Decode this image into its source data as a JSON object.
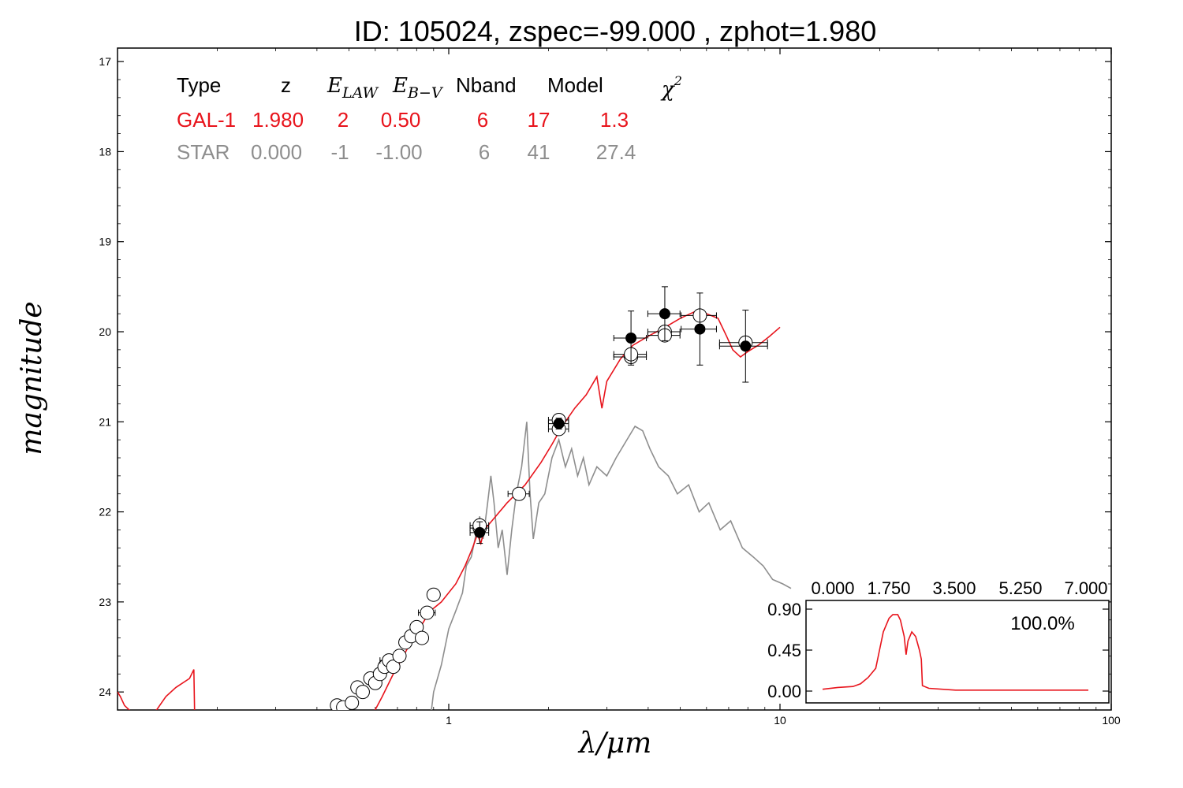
{
  "title": "ID:  105024, zspec=-99.000 , zphot=1.980",
  "colors": {
    "galaxy": "#e8141c",
    "star": "#8e8e8e",
    "axes": "#000000",
    "open_point_fill": "#ffffff",
    "filled_point": "#000000"
  },
  "fit_table": {
    "headers": {
      "type": "Type",
      "z": "z",
      "e_law": "E_LAW",
      "e_bv": "E_B−V",
      "nband": "Nband",
      "model": "Model",
      "chi2": "χ²"
    },
    "rows": [
      {
        "name": "galaxy",
        "type": "GAL-1",
        "z": "1.980",
        "e_law": "2",
        "e_bv": "0.50",
        "nband": "6",
        "model": "17",
        "chi2": "1.3",
        "color": "#e8141c"
      },
      {
        "name": "star",
        "type": "STAR",
        "z": "0.000",
        "e_law": "-1",
        "e_bv": "-1.00",
        "nband": "6",
        "model": "41",
        "chi2": "27.4",
        "color": "#8e8e8e"
      }
    ]
  },
  "chart_data": [
    {
      "type": "line",
      "xlabel": "λ/μm",
      "ylabel": "magnitude",
      "x_scale": "log",
      "xlim": [
        0.1,
        100
      ],
      "ylim": [
        24.2,
        16.85
      ],
      "y_inverted": true,
      "x_ticks": [
        "1",
        "10",
        "100"
      ],
      "x_tick_values": [
        1,
        10,
        100
      ],
      "y_ticks": [
        "17",
        "18",
        "19",
        "20",
        "21",
        "22",
        "23",
        "24"
      ],
      "y_tick_values": [
        17,
        18,
        19,
        20,
        21,
        22,
        23,
        24
      ],
      "series": [
        {
          "id": "galaxy_model",
          "color": "#e8141c",
          "points": [
            [
              0.1,
              24.0
            ],
            [
              0.102,
              24.05
            ],
            [
              0.105,
              24.15
            ],
            [
              0.11,
              24.22
            ],
            [
              0.13,
              24.22
            ],
            [
              0.14,
              24.05
            ],
            [
              0.15,
              23.95
            ],
            [
              0.165,
              23.85
            ],
            [
              0.17,
              23.75
            ],
            [
              0.171,
              24.3
            ],
            [
              0.58,
              24.3
            ],
            [
              0.63,
              24.05
            ],
            [
              0.68,
              23.8
            ],
            [
              0.73,
              23.6
            ],
            [
              0.78,
              23.4
            ],
            [
              0.83,
              23.25
            ],
            [
              0.88,
              23.1
            ],
            [
              0.95,
              23.0
            ],
            [
              1.05,
              22.8
            ],
            [
              1.12,
              22.6
            ],
            [
              1.18,
              22.4
            ],
            [
              1.22,
              22.25
            ],
            [
              1.25,
              22.35
            ],
            [
              1.28,
              22.2
            ],
            [
              1.35,
              22.1
            ],
            [
              1.5,
              21.9
            ],
            [
              1.7,
              21.7
            ],
            [
              1.9,
              21.45
            ],
            [
              2.05,
              21.25
            ],
            [
              2.2,
              21.05
            ],
            [
              2.4,
              20.85
            ],
            [
              2.6,
              20.7
            ],
            [
              2.8,
              20.5
            ],
            [
              2.9,
              20.85
            ],
            [
              3.0,
              20.55
            ],
            [
              3.3,
              20.3
            ],
            [
              3.6,
              20.15
            ],
            [
              4.0,
              20.05
            ],
            [
              4.5,
              19.95
            ],
            [
              5.0,
              19.85
            ],
            [
              5.5,
              19.78
            ],
            [
              6.0,
              19.8
            ],
            [
              6.5,
              19.85
            ],
            [
              6.9,
              20.05
            ],
            [
              7.2,
              20.2
            ],
            [
              7.6,
              20.28
            ],
            [
              8.0,
              20.22
            ],
            [
              8.6,
              20.15
            ],
            [
              9.3,
              20.05
            ],
            [
              10.0,
              19.95
            ]
          ]
        },
        {
          "id": "star_model",
          "color": "#8e8e8e",
          "points": [
            [
              0.88,
              24.3
            ],
            [
              0.9,
              24.0
            ],
            [
              0.95,
              23.7
            ],
            [
              1.0,
              23.3
            ],
            [
              1.05,
              23.1
            ],
            [
              1.1,
              22.9
            ],
            [
              1.13,
              22.6
            ],
            [
              1.17,
              22.5
            ],
            [
              1.2,
              22.3
            ],
            [
              1.24,
              22.05
            ],
            [
              1.27,
              22.3
            ],
            [
              1.31,
              21.9
            ],
            [
              1.34,
              21.6
            ],
            [
              1.37,
              21.9
            ],
            [
              1.41,
              22.4
            ],
            [
              1.45,
              22.2
            ],
            [
              1.5,
              22.7
            ],
            [
              1.55,
              22.2
            ],
            [
              1.6,
              21.8
            ],
            [
              1.66,
              21.5
            ],
            [
              1.72,
              21.0
            ],
            [
              1.76,
              21.8
            ],
            [
              1.8,
              22.3
            ],
            [
              1.87,
              21.9
            ],
            [
              1.95,
              21.8
            ],
            [
              2.05,
              21.4
            ],
            [
              2.15,
              21.2
            ],
            [
              2.25,
              21.5
            ],
            [
              2.35,
              21.3
            ],
            [
              2.45,
              21.6
            ],
            [
              2.55,
              21.4
            ],
            [
              2.65,
              21.7
            ],
            [
              2.8,
              21.5
            ],
            [
              3.0,
              21.6
            ],
            [
              3.2,
              21.4
            ],
            [
              3.45,
              21.2
            ],
            [
              3.65,
              21.05
            ],
            [
              3.85,
              21.1
            ],
            [
              4.05,
              21.3
            ],
            [
              4.3,
              21.5
            ],
            [
              4.6,
              21.6
            ],
            [
              4.9,
              21.8
            ],
            [
              5.3,
              21.7
            ],
            [
              5.7,
              22.0
            ],
            [
              6.1,
              21.9
            ],
            [
              6.6,
              22.2
            ],
            [
              7.1,
              22.1
            ],
            [
              7.7,
              22.4
            ],
            [
              8.3,
              22.5
            ],
            [
              8.9,
              22.6
            ],
            [
              9.5,
              22.75
            ],
            [
              10.2,
              22.8
            ],
            [
              10.8,
              22.85
            ]
          ]
        }
      ],
      "photometry_model_points": [
        {
          "x": 0.46,
          "y": 24.15,
          "xerr": 0.0
        },
        {
          "x": 0.48,
          "y": 24.17,
          "xerr": 0.0
        },
        {
          "x": 0.51,
          "y": 24.12,
          "xerr": 0.0
        },
        {
          "x": 0.53,
          "y": 23.95,
          "xerr": 0.0
        },
        {
          "x": 0.55,
          "y": 24.0,
          "xerr": 0.0
        },
        {
          "x": 0.58,
          "y": 23.85,
          "xerr": 0.0
        },
        {
          "x": 0.6,
          "y": 23.9,
          "xerr": 0.0
        },
        {
          "x": 0.62,
          "y": 23.8,
          "xerr": 0.0
        },
        {
          "x": 0.64,
          "y": 23.72,
          "xerr": 0.0
        },
        {
          "x": 0.66,
          "y": 23.65,
          "xerr": 0.04
        },
        {
          "x": 0.68,
          "y": 23.72,
          "xerr": 0.0
        },
        {
          "x": 0.71,
          "y": 23.6,
          "xerr": 0.0
        },
        {
          "x": 0.74,
          "y": 23.45,
          "xerr": 0.0
        },
        {
          "x": 0.77,
          "y": 23.38,
          "xerr": 0.0
        },
        {
          "x": 0.8,
          "y": 23.28,
          "xerr": 0.0
        },
        {
          "x": 0.83,
          "y": 23.4,
          "xerr": 0.0
        },
        {
          "x": 0.86,
          "y": 23.12,
          "xerr": 0.05
        },
        {
          "x": 0.9,
          "y": 22.92,
          "xerr": 0.0
        },
        {
          "x": 1.24,
          "y": 22.18,
          "xerr": 0.08
        },
        {
          "x": 1.24,
          "y": 22.15,
          "xerr": 0.08
        },
        {
          "x": 1.63,
          "y": 21.8,
          "xerr": 0.12
        },
        {
          "x": 2.15,
          "y": 20.98,
          "xerr": 0.15
        },
        {
          "x": 2.15,
          "y": 21.08,
          "xerr": 0.15
        },
        {
          "x": 3.55,
          "y": 20.28,
          "xerr": 0.4
        },
        {
          "x": 3.55,
          "y": 20.25,
          "xerr": 0.4
        },
        {
          "x": 4.49,
          "y": 20.0,
          "xerr": 0.5
        },
        {
          "x": 4.49,
          "y": 20.04,
          "xerr": 0.5
        },
        {
          "x": 5.73,
          "y": 19.82,
          "xerr": 0.7
        },
        {
          "x": 7.87,
          "y": 20.12,
          "xerr": 1.3
        }
      ],
      "photometry_observed_points": [
        {
          "x": 1.24,
          "y": 22.23,
          "xerr": 0.08,
          "yerr": 0.12
        },
        {
          "x": 2.15,
          "y": 21.02,
          "xerr": 0.15,
          "yerr": 0.06
        },
        {
          "x": 3.55,
          "y": 20.07,
          "xerr": 0.4,
          "yerr": 0.3
        },
        {
          "x": 4.49,
          "y": 19.8,
          "xerr": 0.5,
          "yerr": 0.3
        },
        {
          "x": 5.73,
          "y": 19.97,
          "xerr": 0.7,
          "yerr": 0.4
        },
        {
          "x": 7.87,
          "y": 20.16,
          "xerr": 1.3,
          "yerr": 0.4
        }
      ]
    },
    {
      "type": "line",
      "xlabel": "",
      "ylabel": "",
      "xlim": [
        0.0,
        7.0
      ],
      "ylim": [
        -0.1,
        1.0
      ],
      "x_ticks": [
        "0.000",
        "1.750",
        "3.500",
        "5.250",
        "7.000"
      ],
      "y_ticks": [
        "0.00",
        "0.45",
        "0.90"
      ],
      "y_tick_values": [
        0.0,
        0.45,
        0.9
      ],
      "annotation": "100.0%",
      "series": [
        {
          "id": "pdz",
          "color": "#e8141c",
          "points": [
            [
              0.0,
              0.02
            ],
            [
              0.4,
              0.04
            ],
            [
              0.8,
              0.05
            ],
            [
              1.0,
              0.08
            ],
            [
              1.2,
              0.15
            ],
            [
              1.4,
              0.25
            ],
            [
              1.5,
              0.45
            ],
            [
              1.6,
              0.65
            ],
            [
              1.75,
              0.8
            ],
            [
              1.85,
              0.84
            ],
            [
              1.98,
              0.84
            ],
            [
              2.05,
              0.78
            ],
            [
              2.15,
              0.6
            ],
            [
              2.2,
              0.4
            ],
            [
              2.25,
              0.55
            ],
            [
              2.35,
              0.65
            ],
            [
              2.45,
              0.6
            ],
            [
              2.55,
              0.45
            ],
            [
              2.6,
              0.35
            ],
            [
              2.63,
              0.06
            ],
            [
              2.8,
              0.03
            ],
            [
              3.5,
              0.01
            ],
            [
              5.25,
              0.01
            ],
            [
              7.0,
              0.01
            ]
          ]
        }
      ]
    }
  ]
}
